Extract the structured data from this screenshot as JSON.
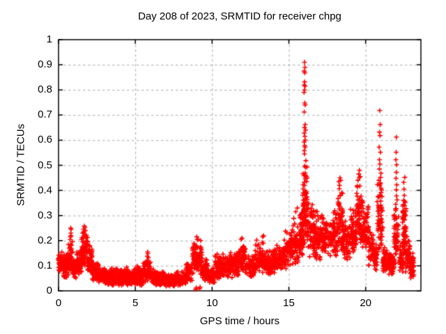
{
  "chart_data": {
    "type": "scatter",
    "title": "Day 208 of 2023, SRMTID for receiver chpg",
    "xlabel": "GPS time / hours",
    "ylabel": "SRMTID / TECUs",
    "xlim": [
      0,
      23.6
    ],
    "ylim": [
      0,
      1
    ],
    "xticks": [
      "0",
      "5",
      "10",
      "15",
      "20"
    ],
    "yticks": [
      "0",
      "0.1",
      "0.2",
      "0.3",
      "0.4",
      "0.5",
      "0.6",
      "0.7",
      "0.8",
      "0.9",
      "1"
    ],
    "grid": true,
    "legend": "none",
    "marker": "plus",
    "marker_color": "#ff0000",
    "grid_color": "#a8a8a8",
    "border_color": "#000000",
    "bands_format": [
      "x_start_hours",
      "x_end_hours",
      "y_low_TECUs",
      "y_high_TECUs",
      "point_count"
    ],
    "bands": [
      [
        0.0,
        0.3,
        0.07,
        0.16,
        60
      ],
      [
        0.3,
        0.6,
        0.05,
        0.15,
        60
      ],
      [
        0.6,
        0.9,
        0.06,
        0.2,
        60
      ],
      [
        0.9,
        1.2,
        0.05,
        0.14,
        55
      ],
      [
        1.2,
        1.5,
        0.06,
        0.17,
        55
      ],
      [
        1.5,
        1.9,
        0.08,
        0.24,
        70
      ],
      [
        1.9,
        2.2,
        0.06,
        0.19,
        55
      ],
      [
        2.2,
        2.6,
        0.04,
        0.13,
        55
      ],
      [
        2.6,
        3.0,
        0.03,
        0.11,
        55
      ],
      [
        3.0,
        3.5,
        0.02,
        0.1,
        80
      ],
      [
        3.5,
        4.0,
        0.02,
        0.09,
        80
      ],
      [
        4.0,
        4.5,
        0.02,
        0.1,
        80
      ],
      [
        4.5,
        5.0,
        0.02,
        0.09,
        80
      ],
      [
        5.0,
        5.5,
        0.02,
        0.1,
        80
      ],
      [
        5.5,
        6.0,
        0.03,
        0.13,
        80
      ],
      [
        6.0,
        6.5,
        0.02,
        0.09,
        75
      ],
      [
        6.5,
        7.0,
        0.02,
        0.08,
        70
      ],
      [
        7.0,
        7.6,
        0.01,
        0.07,
        70
      ],
      [
        7.6,
        8.3,
        0.02,
        0.08,
        75
      ],
      [
        8.3,
        8.7,
        0.03,
        0.12,
        50
      ],
      [
        8.7,
        9.35,
        0.06,
        0.21,
        90
      ],
      [
        9.35,
        9.7,
        0.04,
        0.13,
        50
      ],
      [
        9.7,
        10.2,
        0.03,
        0.1,
        60
      ],
      [
        10.2,
        10.7,
        0.04,
        0.15,
        65
      ],
      [
        10.7,
        11.2,
        0.05,
        0.15,
        65
      ],
      [
        11.2,
        11.7,
        0.05,
        0.16,
        65
      ],
      [
        11.7,
        12.2,
        0.07,
        0.2,
        70
      ],
      [
        12.2,
        12.8,
        0.05,
        0.16,
        70
      ],
      [
        12.8,
        13.4,
        0.07,
        0.21,
        70
      ],
      [
        13.4,
        14.0,
        0.06,
        0.17,
        70
      ],
      [
        14.0,
        14.6,
        0.07,
        0.2,
        70
      ],
      [
        14.6,
        15.2,
        0.08,
        0.24,
        75
      ],
      [
        15.2,
        15.7,
        0.1,
        0.3,
        75
      ],
      [
        15.7,
        15.95,
        0.13,
        0.35,
        55
      ],
      [
        15.9,
        16.2,
        0.18,
        0.55,
        80
      ],
      [
        16.2,
        16.7,
        0.12,
        0.38,
        75
      ],
      [
        16.7,
        17.2,
        0.12,
        0.33,
        70
      ],
      [
        17.2,
        17.8,
        0.13,
        0.3,
        70
      ],
      [
        17.8,
        18.2,
        0.12,
        0.35,
        60
      ],
      [
        18.2,
        18.5,
        0.15,
        0.42,
        55
      ],
      [
        18.5,
        19.0,
        0.12,
        0.3,
        65
      ],
      [
        19.0,
        19.4,
        0.15,
        0.35,
        60
      ],
      [
        19.4,
        19.8,
        0.18,
        0.46,
        70
      ],
      [
        19.8,
        20.2,
        0.15,
        0.35,
        65
      ],
      [
        20.2,
        20.5,
        0.1,
        0.25,
        45
      ],
      [
        20.5,
        20.75,
        0.08,
        0.2,
        40
      ],
      [
        20.75,
        21.1,
        0.14,
        0.45,
        65
      ],
      [
        21.1,
        21.5,
        0.07,
        0.18,
        60
      ],
      [
        21.5,
        21.85,
        0.06,
        0.16,
        55
      ],
      [
        21.85,
        22.15,
        0.1,
        0.35,
        60
      ],
      [
        22.2,
        22.45,
        0.07,
        0.2,
        45
      ],
      [
        22.4,
        22.65,
        0.1,
        0.38,
        50
      ],
      [
        22.6,
        22.9,
        0.07,
        0.22,
        50
      ],
      [
        22.9,
        23.15,
        0.05,
        0.16,
        45
      ]
    ],
    "outliers_format": [
      "x_hours",
      "y_TECUs"
    ],
    "outliers": [
      [
        0.76,
        0.205
      ],
      [
        0.78,
        0.215
      ],
      [
        0.8,
        0.23
      ],
      [
        0.82,
        0.245
      ],
      [
        0.79,
        0.25
      ],
      [
        0.81,
        0.22
      ],
      [
        1.62,
        0.245
      ],
      [
        1.68,
        0.258
      ],
      [
        1.72,
        0.252
      ],
      [
        1.65,
        0.235
      ],
      [
        1.75,
        0.24
      ],
      [
        1.7,
        0.225
      ],
      [
        5.78,
        0.138
      ],
      [
        5.82,
        0.148
      ],
      [
        5.8,
        0.155
      ],
      [
        5.85,
        0.132
      ],
      [
        8.93,
        0.006
      ],
      [
        8.97,
        0.012
      ],
      [
        9.18,
        0.008
      ],
      [
        9.22,
        0.015
      ],
      [
        9.0,
        0.215
      ],
      [
        9.1,
        0.205
      ],
      [
        11.9,
        0.205
      ],
      [
        11.95,
        0.21
      ],
      [
        13.3,
        0.215
      ],
      [
        13.35,
        0.22
      ],
      [
        15.45,
        0.315
      ],
      [
        15.55,
        0.33
      ],
      [
        16.02,
        0.91
      ],
      [
        16.05,
        0.89
      ],
      [
        16.0,
        0.875
      ],
      [
        16.04,
        0.868
      ],
      [
        16.03,
        0.832
      ],
      [
        16.0,
        0.82
      ],
      [
        16.06,
        0.815
      ],
      [
        16.02,
        0.8
      ],
      [
        15.99,
        0.79
      ],
      [
        16.04,
        0.748
      ],
      [
        16.06,
        0.74
      ],
      [
        16.0,
        0.712
      ],
      [
        16.06,
        0.662
      ],
      [
        16.02,
        0.65
      ],
      [
        16.09,
        0.64
      ],
      [
        16.0,
        0.628
      ],
      [
        16.04,
        0.615
      ],
      [
        16.06,
        0.6
      ],
      [
        16.0,
        0.592
      ],
      [
        16.03,
        0.578
      ],
      [
        16.06,
        0.572
      ],
      [
        16.0,
        0.558
      ],
      [
        16.02,
        0.545
      ],
      [
        18.25,
        0.435
      ],
      [
        18.33,
        0.45
      ],
      [
        18.38,
        0.44
      ],
      [
        18.3,
        0.42
      ],
      [
        19.55,
        0.465
      ],
      [
        19.6,
        0.48
      ],
      [
        19.65,
        0.455
      ],
      [
        19.5,
        0.44
      ],
      [
        20.92,
        0.718
      ],
      [
        20.95,
        0.662
      ],
      [
        20.9,
        0.632
      ],
      [
        20.94,
        0.618
      ],
      [
        20.88,
        0.572
      ],
      [
        20.96,
        0.552
      ],
      [
        20.9,
        0.522
      ],
      [
        20.93,
        0.505
      ],
      [
        20.9,
        0.485
      ],
      [
        21.0,
        0.468
      ],
      [
        20.97,
        0.452
      ],
      [
        20.86,
        0.44
      ],
      [
        22.0,
        0.612
      ],
      [
        21.99,
        0.552
      ],
      [
        21.97,
        0.522
      ],
      [
        22.02,
        0.502
      ],
      [
        22.0,
        0.472
      ],
      [
        21.98,
        0.448
      ],
      [
        22.03,
        0.422
      ],
      [
        22.0,
        0.402
      ],
      [
        22.01,
        0.378
      ],
      [
        22.05,
        0.362
      ],
      [
        21.96,
        0.345
      ],
      [
        22.48,
        0.432
      ],
      [
        22.55,
        0.452
      ],
      [
        22.5,
        0.405
      ],
      [
        22.52,
        0.38
      ],
      [
        22.46,
        0.36
      ],
      [
        22.53,
        0.34
      ],
      [
        22.5,
        0.32
      ],
      [
        22.49,
        0.3
      ],
      [
        22.51,
        0.285
      ]
    ]
  }
}
